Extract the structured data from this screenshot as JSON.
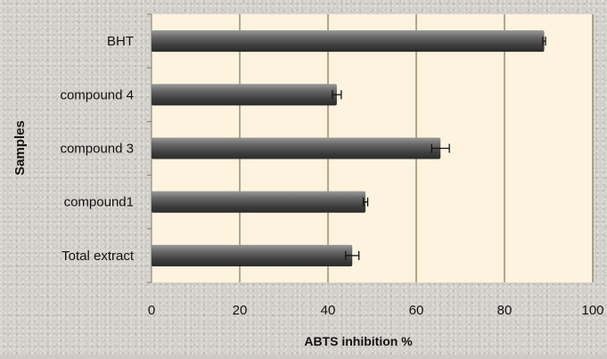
{
  "chart_data": {
    "type": "bar",
    "orientation": "horizontal",
    "categories": [
      "Total extract",
      "compound1",
      "compound 3",
      "compound 4",
      "BHT"
    ],
    "values": [
      45.5,
      48.5,
      65.5,
      42,
      89
    ],
    "errors": [
      1.5,
      0.5,
      2,
      1,
      0.3
    ],
    "xlabel": "ABTS inhibition  %",
    "ylabel": "Samples",
    "xlim": [
      0,
      100
    ],
    "xticks": [
      0,
      20,
      40,
      60,
      80,
      100
    ],
    "grid": true,
    "colors": {
      "plot_background": "#fdf3df",
      "bar": "#4f4f4f",
      "gridline": "#6b5a2e"
    }
  }
}
